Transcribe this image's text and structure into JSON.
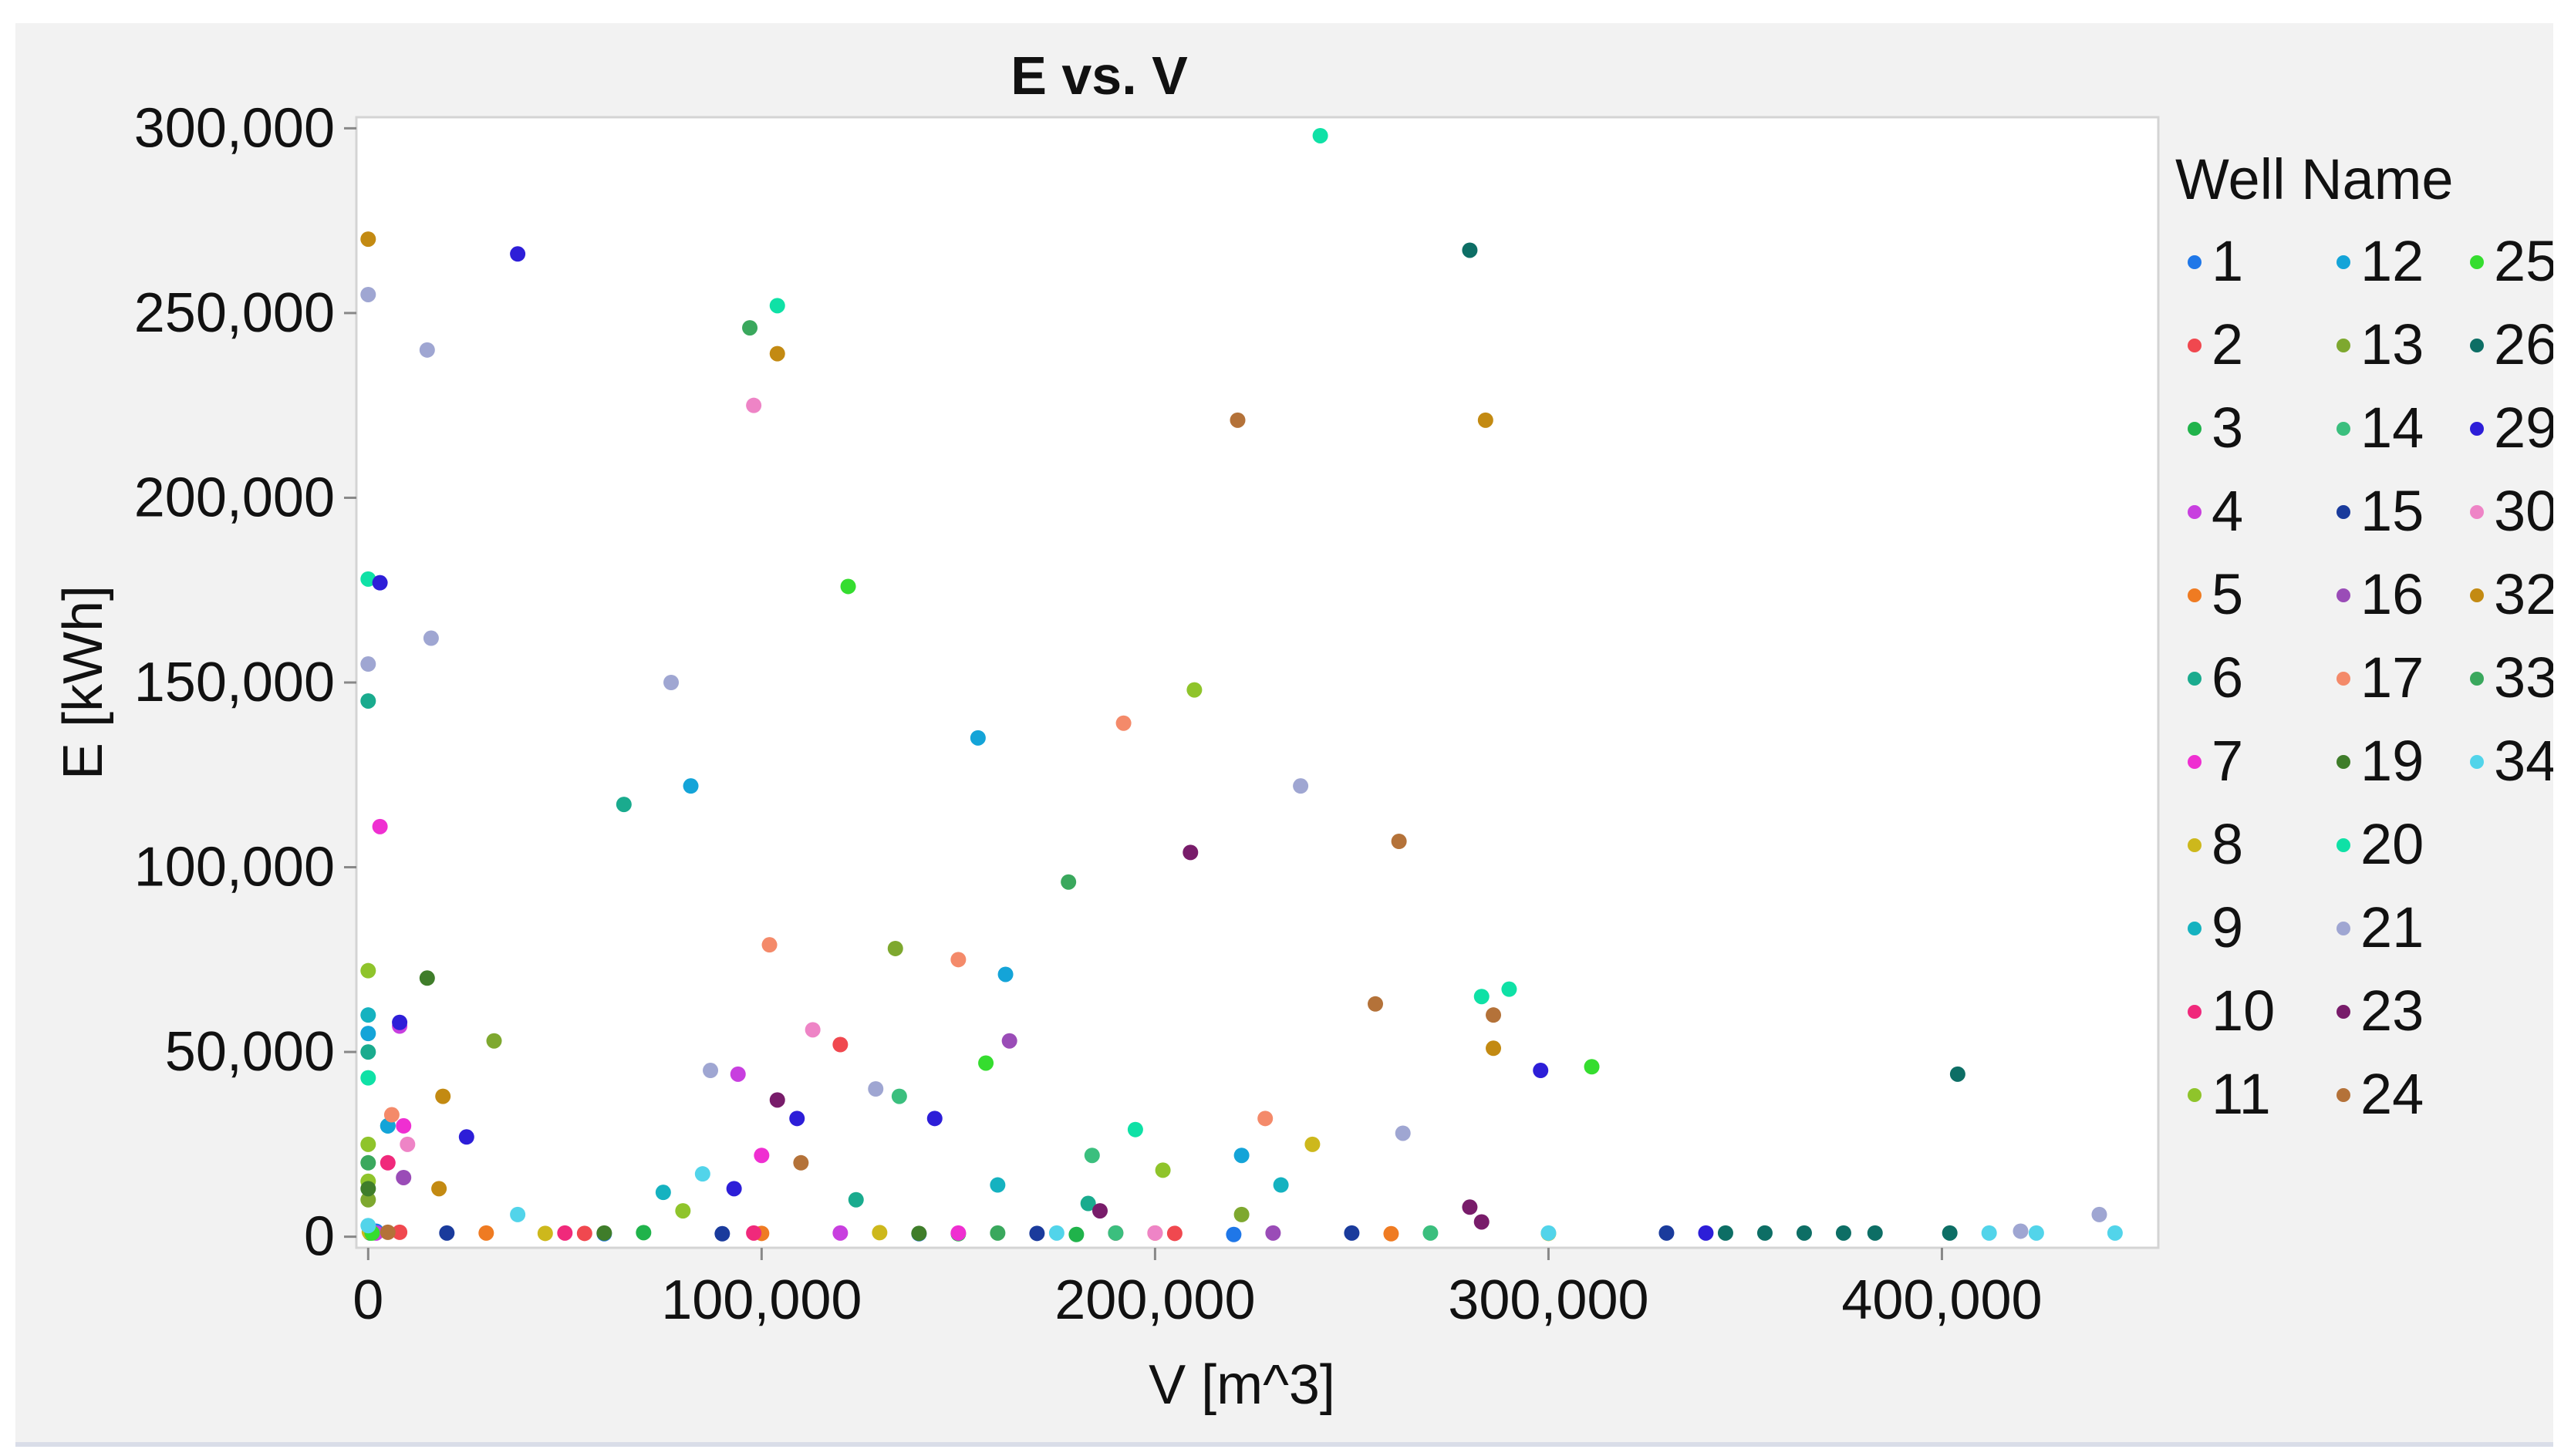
{
  "chart_data": {
    "type": "scatter",
    "title": "E vs. V",
    "xlabel": "V [m^3]",
    "ylabel": "E [kWh]",
    "xlim": [
      -3000,
      455000
    ],
    "ylim": [
      -3000,
      303000
    ],
    "x_ticks": [
      0,
      100000,
      200000,
      300000,
      400000
    ],
    "x_tick_labels": [
      "0",
      "100,000",
      "200,000",
      "300,000",
      "400,000"
    ],
    "y_ticks": [
      0,
      50000,
      100000,
      150000,
      200000,
      250000,
      300000
    ],
    "y_tick_labels": [
      "0",
      "50,000",
      "100,000",
      "150,000",
      "200,000",
      "250,000",
      "300,000"
    ],
    "grid": false,
    "legend": {
      "title": "Well Name",
      "position": "right"
    },
    "series": [
      {
        "name": "1",
        "color": "#1f77e8",
        "points": [
          [
            2000,
            1500
          ],
          [
            60000,
            800
          ],
          [
            140000,
            800
          ],
          [
            220000,
            600
          ]
        ]
      },
      {
        "name": "2",
        "color": "#f0484f",
        "points": [
          [
            8000,
            1200
          ],
          [
            55000,
            900
          ],
          [
            120000,
            52000
          ],
          [
            205000,
            900
          ]
        ]
      },
      {
        "name": "3",
        "color": "#20b34b",
        "points": [
          [
            500,
            1000
          ],
          [
            70000,
            1100
          ],
          [
            150000,
            800
          ],
          [
            180000,
            600
          ]
        ]
      },
      {
        "name": "4",
        "color": "#c83fdf",
        "points": [
          [
            2000,
            1000
          ],
          [
            8000,
            57000
          ],
          [
            94000,
            44000
          ],
          [
            120000,
            1000
          ]
        ]
      },
      {
        "name": "5",
        "color": "#ef7b22",
        "points": [
          [
            500,
            1200
          ],
          [
            30000,
            1000
          ],
          [
            100000,
            900
          ],
          [
            200000,
            1000
          ],
          [
            260000,
            800
          ]
        ]
      },
      {
        "name": "6",
        "color": "#1aab8e",
        "points": [
          [
            0,
            145000
          ],
          [
            0,
            50000
          ],
          [
            65000,
            117000
          ],
          [
            124000,
            10000
          ],
          [
            183000,
            9000
          ]
        ]
      },
      {
        "name": "7",
        "color": "#ef2fd1",
        "points": [
          [
            3000,
            111000
          ],
          [
            9000,
            30000
          ],
          [
            100000,
            22000
          ],
          [
            150000,
            1000
          ]
        ]
      },
      {
        "name": "8",
        "color": "#cdb81c",
        "points": [
          [
            300,
            1300
          ],
          [
            45000,
            900
          ],
          [
            130000,
            1100
          ],
          [
            240000,
            25000
          ],
          [
            300000,
            900
          ]
        ]
      },
      {
        "name": "9",
        "color": "#15b2c0",
        "points": [
          [
            0,
            60000
          ],
          [
            5000,
            30000
          ],
          [
            75000,
            12000
          ],
          [
            160000,
            14000
          ],
          [
            232000,
            14000
          ]
        ]
      },
      {
        "name": "10",
        "color": "#f0297b",
        "points": [
          [
            5000,
            20000
          ],
          [
            50000,
            1000
          ],
          [
            98000,
            1000
          ],
          [
            190000,
            1000
          ]
        ]
      },
      {
        "name": "11",
        "color": "#8fc42b",
        "points": [
          [
            0,
            72000
          ],
          [
            0,
            25000
          ],
          [
            0,
            15000
          ],
          [
            80000,
            7000
          ],
          [
            210000,
            148000
          ],
          [
            202000,
            18000
          ]
        ]
      },
      {
        "name": "12",
        "color": "#14a4d8",
        "points": [
          [
            0,
            55000
          ],
          [
            5000,
            30000
          ],
          [
            82000,
            122000
          ],
          [
            155000,
            135000
          ],
          [
            162000,
            71000
          ],
          [
            222000,
            22000
          ]
        ]
      },
      {
        "name": "13",
        "color": "#7ea82f",
        "points": [
          [
            0,
            10000
          ],
          [
            32000,
            53000
          ],
          [
            134000,
            78000
          ],
          [
            222000,
            6000
          ]
        ]
      },
      {
        "name": "14",
        "color": "#3bbf7e",
        "points": [
          [
            135000,
            38000
          ],
          [
            184000,
            22000
          ],
          [
            190000,
            1000
          ],
          [
            270000,
            1000
          ]
        ]
      },
      {
        "name": "15",
        "color": "#1a3b9c",
        "points": [
          [
            20000,
            1000
          ],
          [
            90000,
            800
          ],
          [
            170000,
            900
          ],
          [
            250000,
            1000
          ],
          [
            330000,
            1000
          ]
        ]
      },
      {
        "name": "16",
        "color": "#9a4cb7",
        "points": [
          [
            9000,
            16000
          ],
          [
            163000,
            53000
          ],
          [
            230000,
            1000
          ]
        ]
      },
      {
        "name": "17",
        "color": "#f48a6a",
        "points": [
          [
            6000,
            33000
          ],
          [
            102000,
            79000
          ],
          [
            150000,
            75000
          ],
          [
            192000,
            139000
          ],
          [
            228000,
            32000
          ]
        ]
      },
      {
        "name": "19",
        "color": "#3f7d2a",
        "points": [
          [
            0,
            13000
          ],
          [
            15000,
            70000
          ],
          [
            60000,
            1000
          ],
          [
            140000,
            900
          ]
        ]
      },
      {
        "name": "20",
        "color": "#0fe1a6",
        "points": [
          [
            0,
            178000
          ],
          [
            0,
            43000
          ],
          [
            104000,
            252000
          ],
          [
            195000,
            29000
          ],
          [
            242000,
            298000
          ],
          [
            283000,
            65000
          ],
          [
            290000,
            67000
          ]
        ]
      },
      {
        "name": "21",
        "color": "#9fa6d2",
        "points": [
          [
            0,
            255000
          ],
          [
            0,
            155000
          ],
          [
            15000,
            240000
          ],
          [
            16000,
            162000
          ],
          [
            77000,
            150000
          ],
          [
            87000,
            45000
          ],
          [
            129000,
            40000
          ],
          [
            237000,
            122000
          ],
          [
            263000,
            28000
          ],
          [
            420000,
            1500
          ],
          [
            440000,
            6000
          ]
        ]
      },
      {
        "name": "23",
        "color": "#781c6a",
        "points": [
          [
            104000,
            37000
          ],
          [
            186000,
            7000
          ],
          [
            209000,
            104000
          ],
          [
            280000,
            8000
          ],
          [
            283000,
            4000
          ]
        ]
      },
      {
        "name": "24",
        "color": "#b47239",
        "points": [
          [
            5000,
            1200
          ],
          [
            110000,
            20000
          ],
          [
            221000,
            221000
          ],
          [
            262000,
            107000
          ],
          [
            256000,
            63000
          ],
          [
            286000,
            60000
          ]
        ]
      },
      {
        "name": "25",
        "color": "#35dd2f",
        "points": [
          [
            1000,
            1000
          ],
          [
            122000,
            176000
          ],
          [
            157000,
            47000
          ],
          [
            311000,
            46000
          ]
        ]
      },
      {
        "name": "26",
        "color": "#0d6e65",
        "points": [
          [
            280000,
            267000
          ],
          [
            404000,
            44000
          ],
          [
            345000,
            1000
          ],
          [
            355000,
            1000
          ],
          [
            365000,
            1000
          ],
          [
            375000,
            1000
          ],
          [
            383000,
            1000
          ],
          [
            402000,
            1000
          ]
        ]
      },
      {
        "name": "29",
        "color": "#2d1ed8",
        "points": [
          [
            3000,
            177000
          ],
          [
            8000,
            58000
          ],
          [
            25000,
            27000
          ],
          [
            38000,
            266000
          ],
          [
            93000,
            13000
          ],
          [
            109000,
            32000
          ],
          [
            144000,
            32000
          ],
          [
            298000,
            45000
          ],
          [
            340000,
            1000
          ]
        ]
      },
      {
        "name": "30",
        "color": "#ee84c6",
        "points": [
          [
            98000,
            225000
          ],
          [
            113000,
            56000
          ],
          [
            10000,
            25000
          ],
          [
            200000,
            1000
          ]
        ]
      },
      {
        "name": "32",
        "color": "#c38a12",
        "points": [
          [
            0,
            270000
          ],
          [
            19000,
            38000
          ],
          [
            18000,
            13000
          ],
          [
            104000,
            239000
          ],
          [
            284000,
            221000
          ],
          [
            286000,
            51000
          ]
        ]
      },
      {
        "name": "33",
        "color": "#3aa85d",
        "points": [
          [
            97000,
            246000
          ],
          [
            178000,
            96000
          ],
          [
            0,
            20000
          ],
          [
            160000,
            1000
          ]
        ]
      },
      {
        "name": "34",
        "color": "#52d4ea",
        "points": [
          [
            0,
            3000
          ],
          [
            38000,
            6000
          ],
          [
            85000,
            17000
          ],
          [
            175000,
            1000
          ],
          [
            300000,
            1000
          ],
          [
            412000,
            1000
          ],
          [
            424000,
            1000
          ],
          [
            444000,
            1000
          ]
        ]
      }
    ]
  }
}
